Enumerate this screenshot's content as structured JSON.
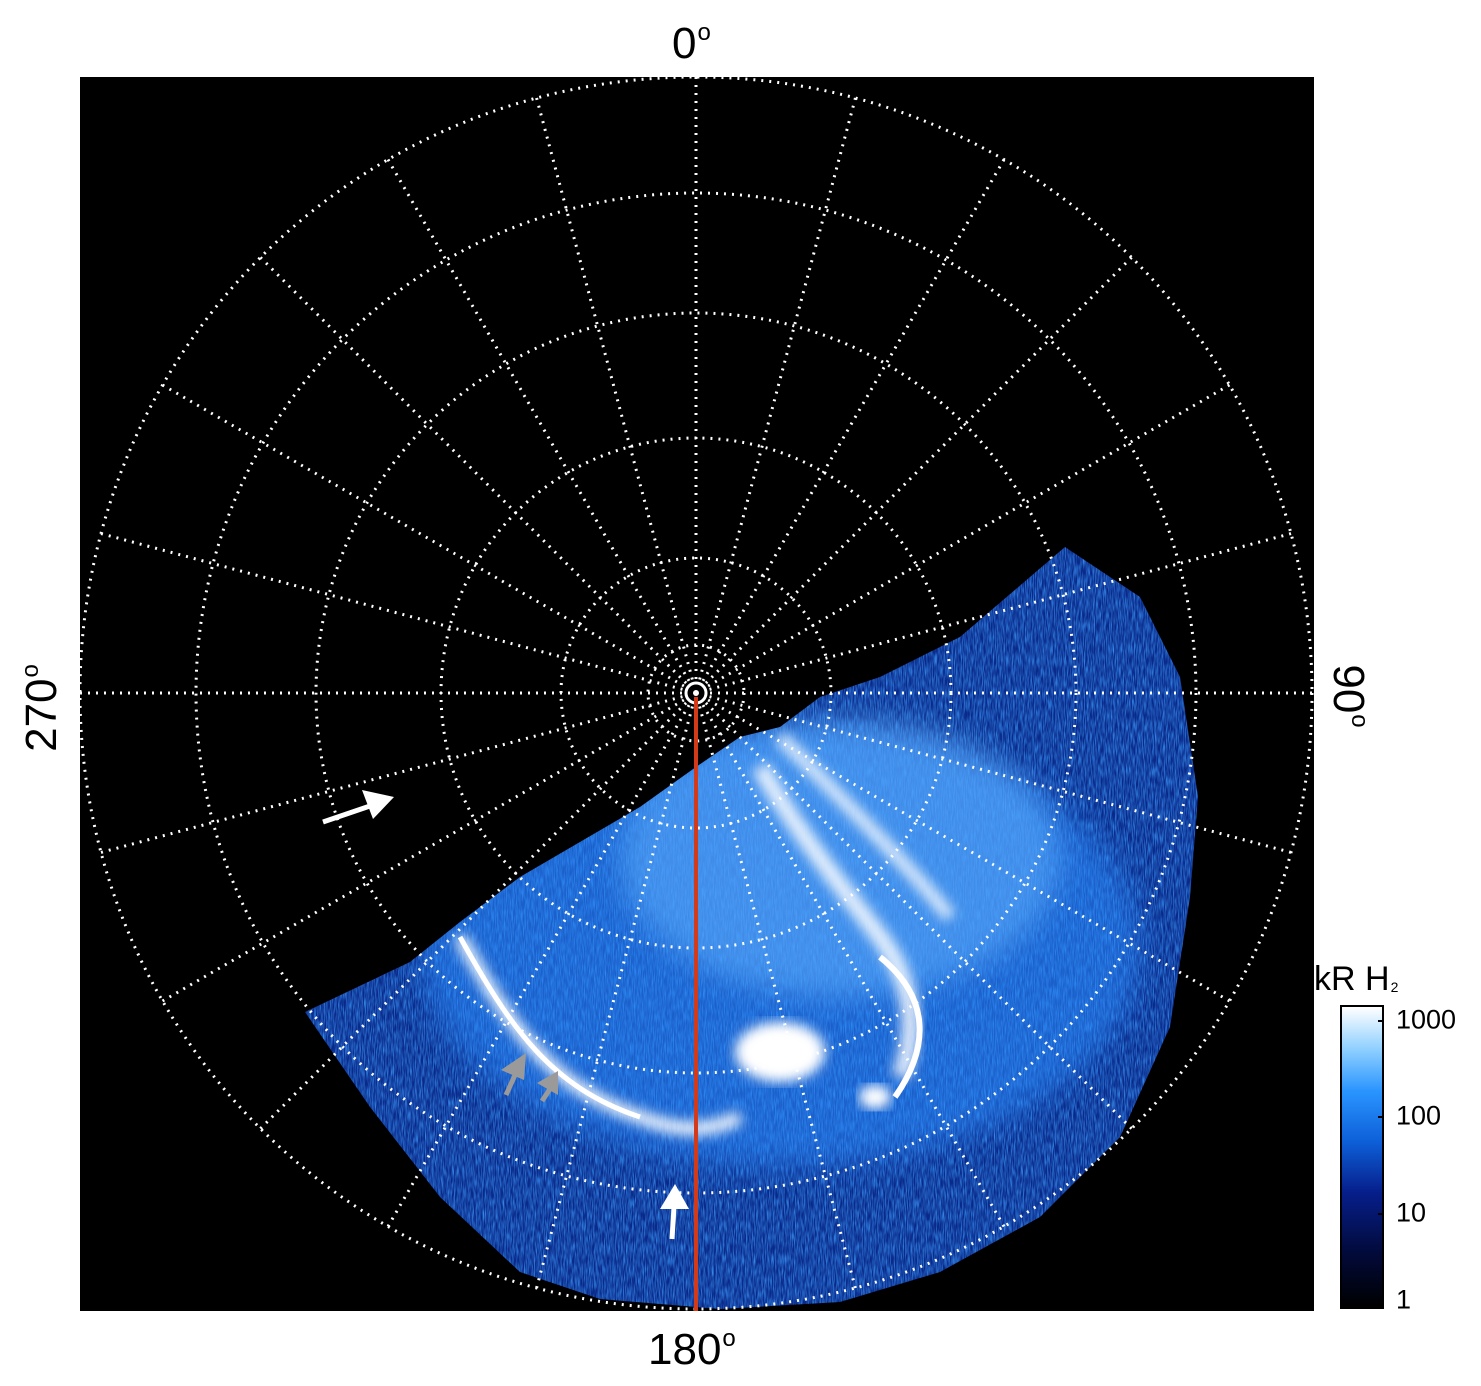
{
  "labels": {
    "top": "0",
    "bottom": "180",
    "left": "270",
    "right": "90",
    "degree_symbol": "o"
  },
  "colorbar": {
    "unit": "kR H",
    "unit_subscript": "2",
    "ticks": [
      "1000",
      "100",
      "10",
      "1"
    ]
  },
  "colors": {
    "background": "#000000",
    "grid": "#ffffff",
    "meridian_line": "#d23a1a",
    "aurora_bright": "#ffffff",
    "aurora_mid": "#2a8cff",
    "aurora_dim": "#0a2a8a",
    "arrow_white": "#ffffff",
    "arrow_gray": "#9a9a9a"
  },
  "icons": [
    "pole-marker-icon",
    "white-arrow-icon",
    "gray-arrow-icon",
    "white-up-arrow-icon"
  ]
}
